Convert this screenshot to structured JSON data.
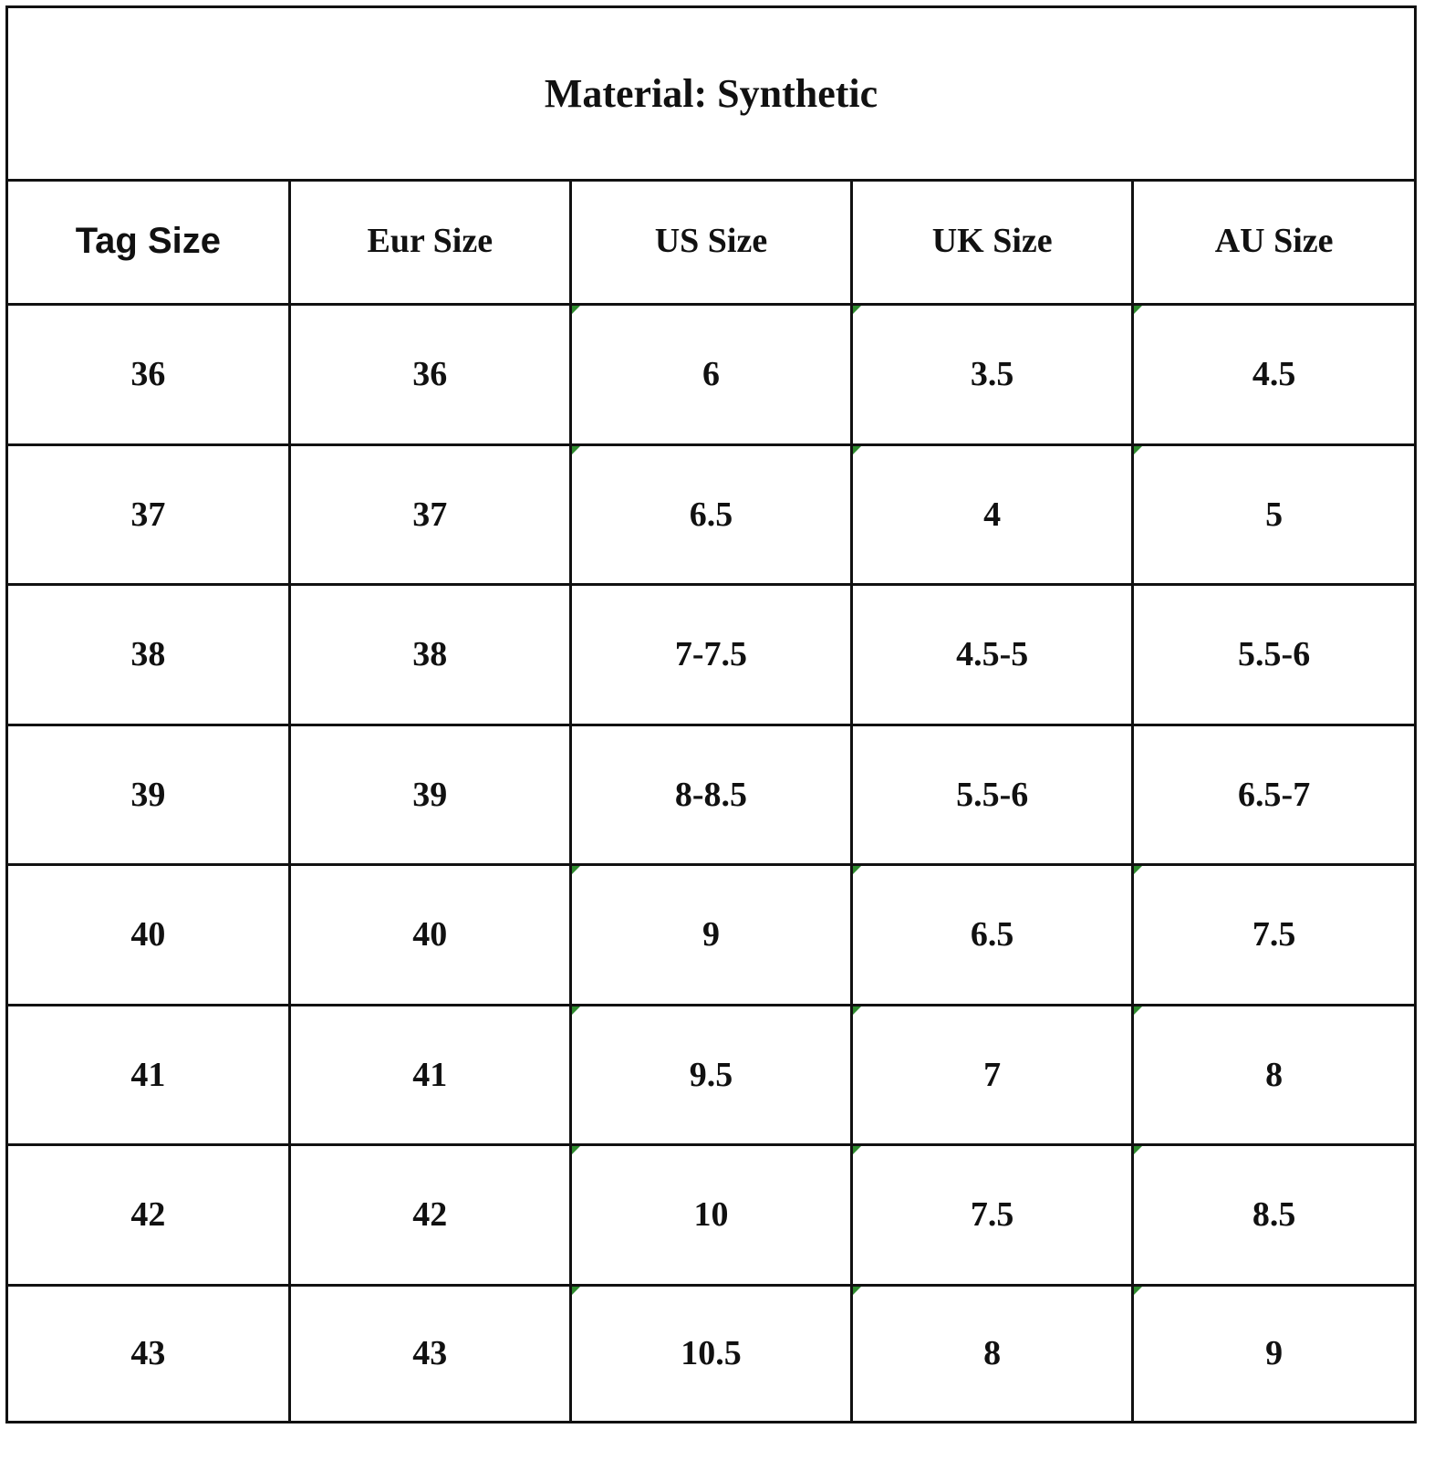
{
  "title": "Material: Synthetic",
  "headers": [
    "Tag Size",
    "Eur Size",
    "US Size",
    "UK Size",
    "AU Size"
  ],
  "rows": [
    [
      "36",
      "36",
      "6",
      "3.5",
      "4.5"
    ],
    [
      "37",
      "37",
      "6.5",
      "4",
      "5"
    ],
    [
      "38",
      "38",
      "7-7.5",
      "4.5-5",
      "5.5-6"
    ],
    [
      "39",
      "39",
      "8-8.5",
      "5.5-6",
      "6.5-7"
    ],
    [
      "40",
      "40",
      "9",
      "6.5",
      "7.5"
    ],
    [
      "41",
      "41",
      "9.5",
      "7",
      "8"
    ],
    [
      "42",
      "42",
      "10",
      "7.5",
      "8.5"
    ],
    [
      "43",
      "43",
      "10.5",
      "8",
      "9"
    ]
  ],
  "colors": {
    "border": "#111111",
    "cell_marker": "#2e8b2e"
  }
}
